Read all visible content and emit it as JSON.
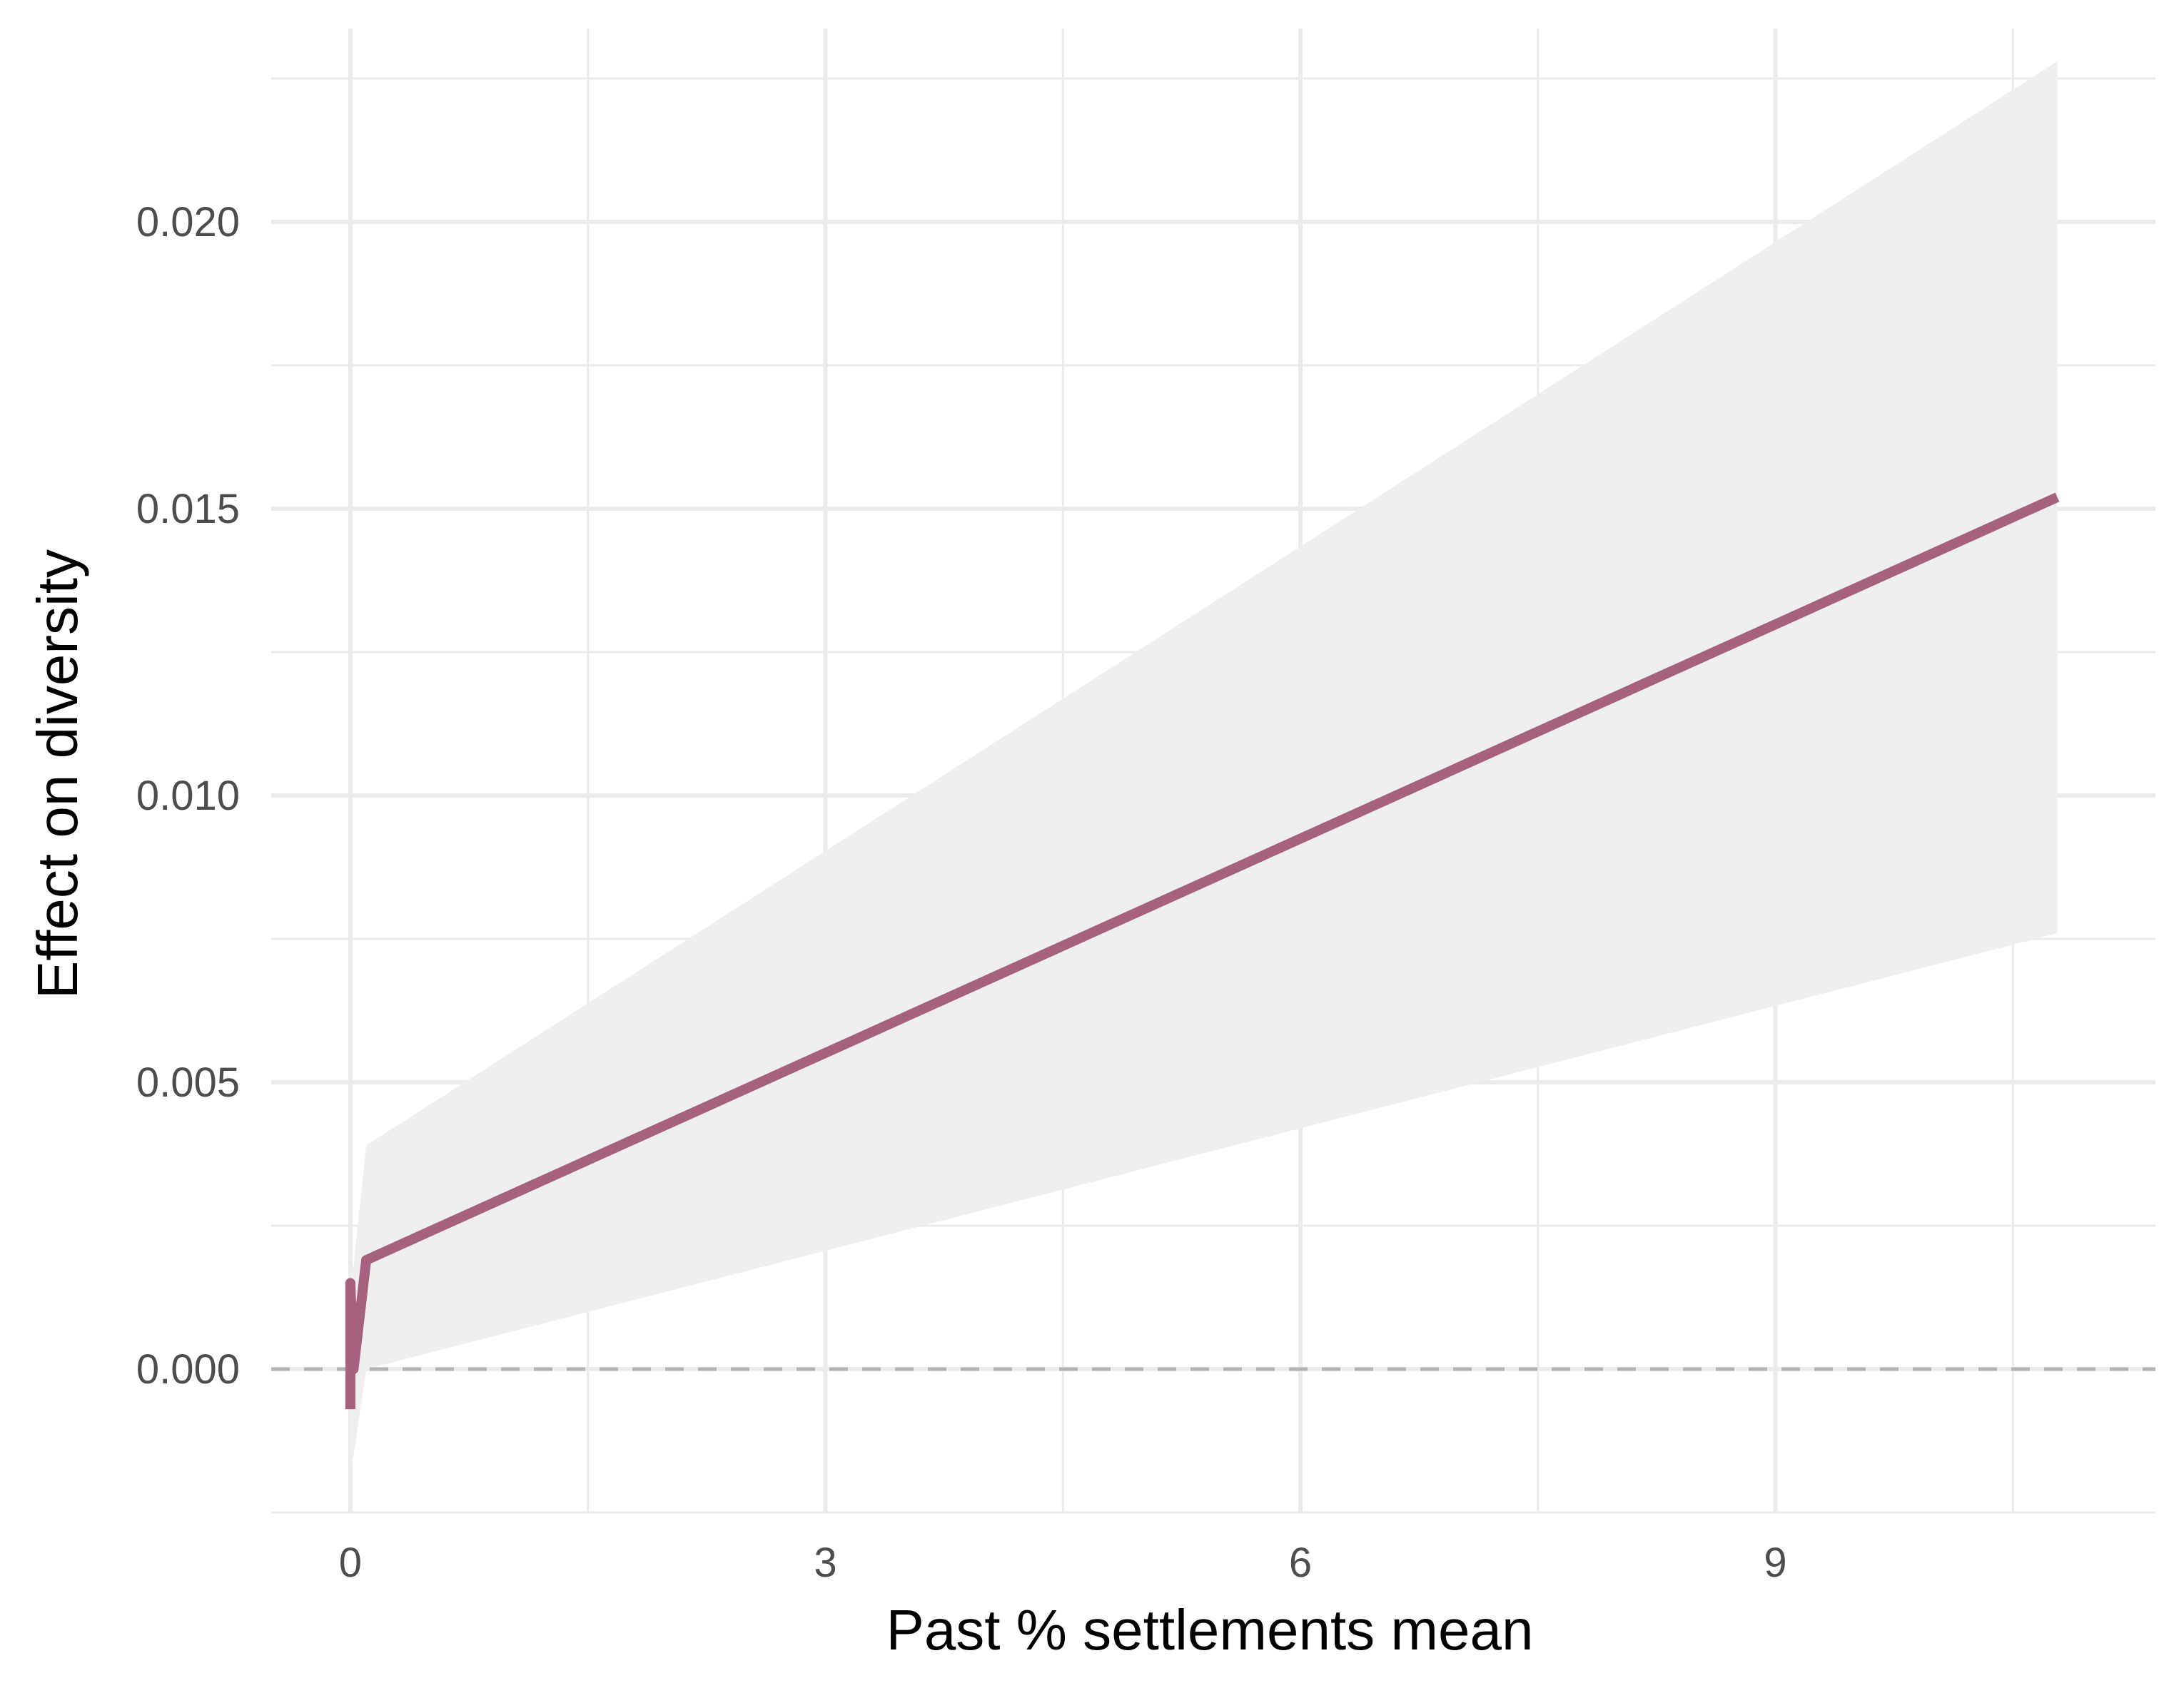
{
  "chart_data": {
    "type": "line",
    "title": "",
    "xlabel": "Past % settlements mean",
    "ylabel": "Effect on diversity",
    "xlim": [
      -0.5,
      11.4
    ],
    "ylim": [
      -0.0025,
      0.0225
    ],
    "x_ticks": [
      0,
      3,
      6,
      9
    ],
    "x_tick_labels": [
      "0",
      "3",
      "6",
      "9"
    ],
    "x_minor_ticks": [
      1.5,
      4.5,
      7.5,
      10.5
    ],
    "y_ticks": [
      0.0,
      0.005,
      0.01,
      0.015,
      0.02
    ],
    "y_tick_labels": [
      "0.000",
      "0.005",
      "0.010",
      "0.015",
      "0.020"
    ],
    "y_minor_ticks": [
      -0.0025,
      0.0025,
      0.0075,
      0.0125,
      0.0175,
      0.0225
    ],
    "grid": true,
    "reference_line": {
      "y": 0,
      "style": "dashed",
      "color": "#b3b3b3"
    },
    "series": [
      {
        "color": "#a6617f",
        "x": [
          0,
          0,
          0.02,
          0.1,
          10.78
        ],
        "y": [
          -0.0007,
          0.0015,
          0.0,
          0.0019,
          0.0152
        ],
        "ribbon": {
          "color": "#efefef",
          "x": [
            0,
            0.02,
            0.1,
            10.78
          ],
          "upper": [
            0.0017,
            0.0018,
            0.0039,
            0.0228
          ],
          "lower": [
            -0.0018,
            -0.0015,
            0.0,
            0.0076
          ]
        }
      }
    ]
  }
}
